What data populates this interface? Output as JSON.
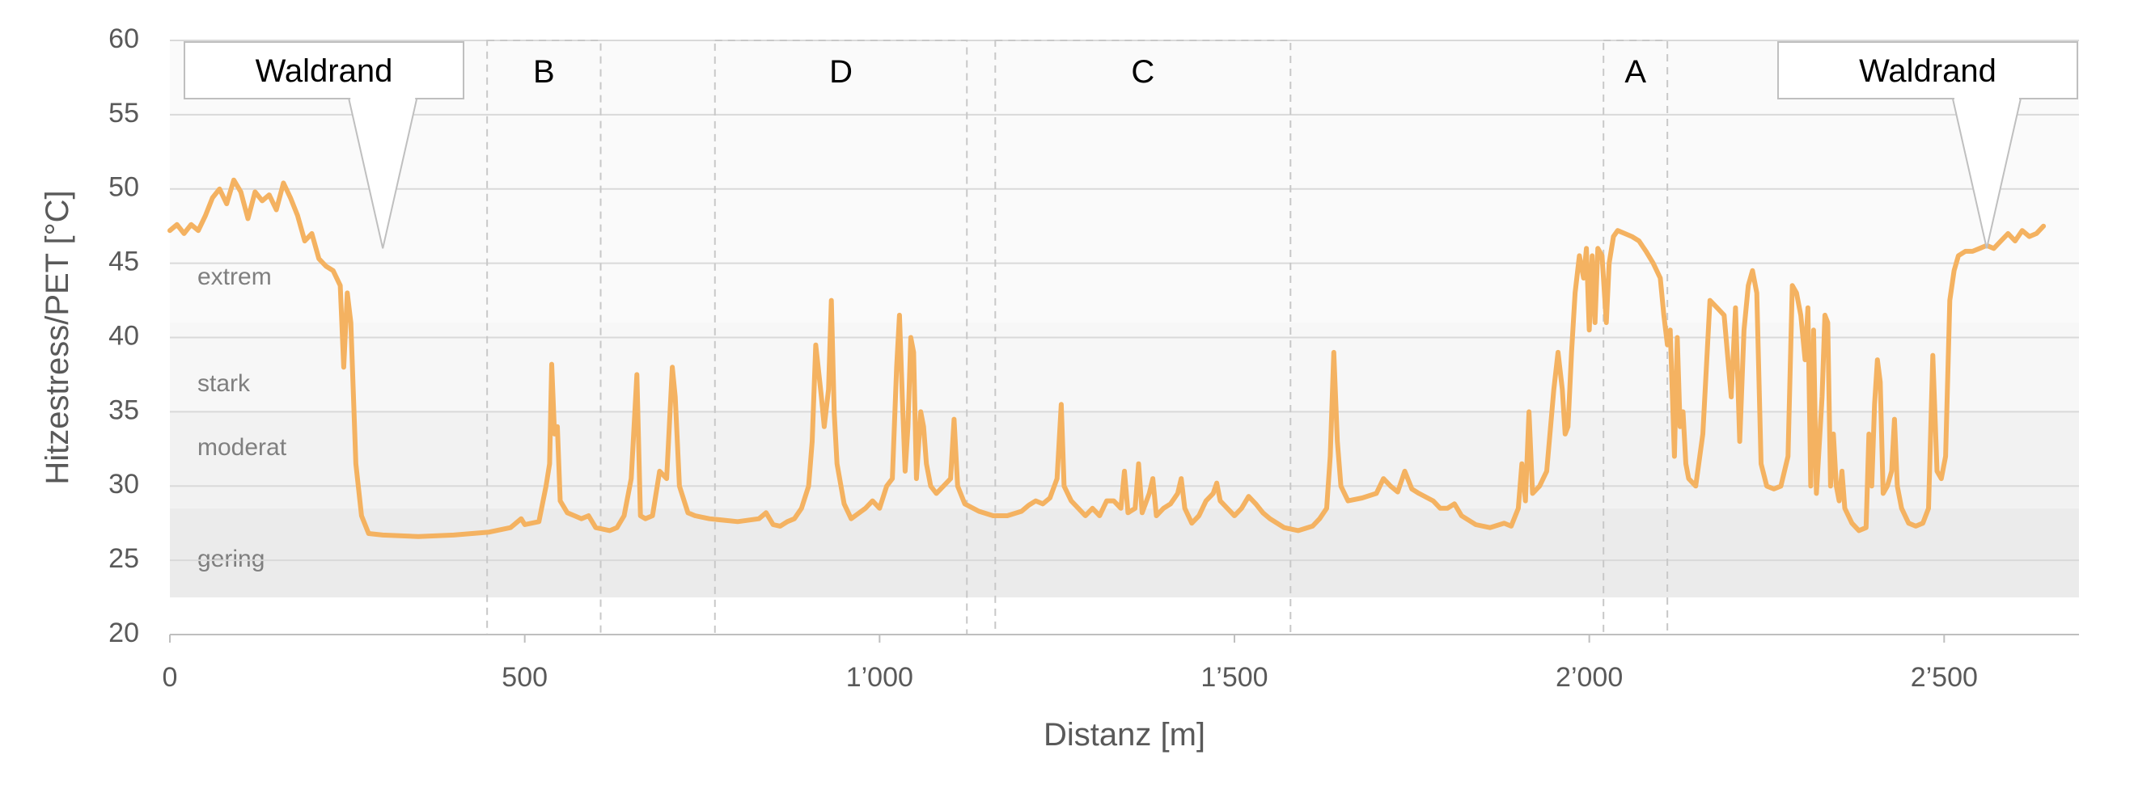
{
  "chart_data": {
    "type": "line",
    "title": "",
    "xlabel": "Distanz [m]",
    "ylabel": "Hitzestress/PET [°C]",
    "xlim": [
      0,
      2690
    ],
    "ylim": [
      20,
      60
    ],
    "x_ticks": [
      0,
      500,
      1000,
      1500,
      2000,
      2500
    ],
    "x_tick_labels": [
      "0",
      "500",
      "1’000",
      "1’500",
      "2’000",
      "2’500"
    ],
    "y_ticks": [
      20,
      25,
      30,
      35,
      40,
      45,
      50,
      55,
      60
    ],
    "y_tick_labels": [
      "20",
      "25",
      "30",
      "35",
      "40",
      "45",
      "50",
      "55",
      "60"
    ],
    "grid": true,
    "legend": "none",
    "colors": {
      "line": "#F4B261",
      "grid": "#D9D9D9",
      "band_gering": "#EBEBEB",
      "band_moderat": "#F2F2F2",
      "band_stark": "#F7F7F7",
      "band_extrem": "#FAFAFA",
      "zone_border": "#C8C8C8",
      "callout_border": "#BFBFBF"
    },
    "bands": [
      {
        "label": "gering",
        "from": 22.5,
        "to": 28.5,
        "color": "#EBEBEB"
      },
      {
        "label": "moderat",
        "from": 28.5,
        "to": 35,
        "color": "#F2F2F2"
      },
      {
        "label": "stark",
        "from": 35,
        "to": 41,
        "color": "#F7F7F7"
      },
      {
        "label": "extrem",
        "from": 41,
        "to": 60,
        "color": "#FAFAFA"
      }
    ],
    "zones": [
      {
        "label": "B",
        "x_from": 447,
        "x_to": 607
      },
      {
        "label": "D",
        "x_from": 768,
        "x_to": 1123
      },
      {
        "label": "C",
        "x_from": 1163,
        "x_to": 1579
      },
      {
        "label": "A",
        "x_from": 2020,
        "x_to": 2110
      }
    ],
    "callouts": [
      {
        "label": "Waldrand",
        "points_to_x": 300,
        "points_to_y": 46
      },
      {
        "label": "Waldrand",
        "points_to_x": 2560,
        "points_to_y": 46
      }
    ],
    "series": [
      {
        "values": [
          [
            0,
            47.2
          ],
          [
            10,
            47.6
          ],
          [
            20,
            47.0
          ],
          [
            30,
            47.6
          ],
          [
            40,
            47.2
          ],
          [
            50,
            48.2
          ],
          [
            60,
            49.4
          ],
          [
            70,
            50.0
          ],
          [
            80,
            49.0
          ],
          [
            90,
            50.6
          ],
          [
            100,
            49.8
          ],
          [
            110,
            48.0
          ],
          [
            120,
            49.8
          ],
          [
            130,
            49.2
          ],
          [
            140,
            49.6
          ],
          [
            150,
            48.6
          ],
          [
            160,
            50.4
          ],
          [
            170,
            49.4
          ],
          [
            180,
            48.2
          ],
          [
            190,
            46.5
          ],
          [
            200,
            47.0
          ],
          [
            210,
            45.3
          ],
          [
            220,
            44.8
          ],
          [
            230,
            44.5
          ],
          [
            240,
            43.5
          ],
          [
            245,
            38.0
          ],
          [
            250,
            43.0
          ],
          [
            255,
            41.0
          ],
          [
            262,
            31.5
          ],
          [
            270,
            28.0
          ],
          [
            280,
            26.8
          ],
          [
            300,
            26.7
          ],
          [
            350,
            26.6
          ],
          [
            400,
            26.7
          ],
          [
            450,
            26.9
          ],
          [
            480,
            27.2
          ],
          [
            495,
            27.8
          ],
          [
            500,
            27.4
          ],
          [
            520,
            27.6
          ],
          [
            530,
            30.0
          ],
          [
            535,
            31.5
          ],
          [
            538,
            38.2
          ],
          [
            542,
            33.5
          ],
          [
            546,
            34.0
          ],
          [
            550,
            29.0
          ],
          [
            560,
            28.2
          ],
          [
            570,
            28.0
          ],
          [
            580,
            27.8
          ],
          [
            590,
            28.0
          ],
          [
            600,
            27.2
          ],
          [
            620,
            27.0
          ],
          [
            630,
            27.2
          ],
          [
            640,
            28.0
          ],
          [
            650,
            30.5
          ],
          [
            658,
            37.5
          ],
          [
            663,
            28.0
          ],
          [
            670,
            27.8
          ],
          [
            680,
            28.0
          ],
          [
            690,
            31.0
          ],
          [
            700,
            30.5
          ],
          [
            708,
            38.0
          ],
          [
            712,
            36.0
          ],
          [
            718,
            30.0
          ],
          [
            730,
            28.2
          ],
          [
            740,
            28.0
          ],
          [
            760,
            27.8
          ],
          [
            800,
            27.6
          ],
          [
            830,
            27.8
          ],
          [
            840,
            28.2
          ],
          [
            850,
            27.4
          ],
          [
            860,
            27.3
          ],
          [
            870,
            27.6
          ],
          [
            880,
            27.8
          ],
          [
            890,
            28.5
          ],
          [
            900,
            30.0
          ],
          [
            905,
            33.0
          ],
          [
            910,
            39.5
          ],
          [
            918,
            36.0
          ],
          [
            922,
            34.0
          ],
          [
            928,
            36.5
          ],
          [
            932,
            42.5
          ],
          [
            936,
            35.0
          ],
          [
            940,
            31.5
          ],
          [
            950,
            28.8
          ],
          [
            960,
            27.8
          ],
          [
            980,
            28.5
          ],
          [
            990,
            29.0
          ],
          [
            1000,
            28.5
          ],
          [
            1010,
            30.0
          ],
          [
            1018,
            30.5
          ],
          [
            1024,
            38.0
          ],
          [
            1028,
            41.5
          ],
          [
            1032,
            36.0
          ],
          [
            1036,
            31.0
          ],
          [
            1040,
            34.0
          ],
          [
            1044,
            40.0
          ],
          [
            1048,
            39.0
          ],
          [
            1052,
            30.5
          ],
          [
            1058,
            35.0
          ],
          [
            1062,
            34.0
          ],
          [
            1066,
            31.5
          ],
          [
            1072,
            30.0
          ],
          [
            1080,
            29.5
          ],
          [
            1090,
            30.0
          ],
          [
            1100,
            30.5
          ],
          [
            1105,
            34.5
          ],
          [
            1110,
            30.0
          ],
          [
            1120,
            28.8
          ],
          [
            1140,
            28.3
          ],
          [
            1160,
            28.0
          ],
          [
            1180,
            28.0
          ],
          [
            1200,
            28.3
          ],
          [
            1210,
            28.7
          ],
          [
            1220,
            29.0
          ],
          [
            1230,
            28.8
          ],
          [
            1240,
            29.2
          ],
          [
            1250,
            30.5
          ],
          [
            1256,
            35.5
          ],
          [
            1260,
            30.0
          ],
          [
            1270,
            29.0
          ],
          [
            1280,
            28.5
          ],
          [
            1290,
            28.0
          ],
          [
            1300,
            28.5
          ],
          [
            1310,
            28.0
          ],
          [
            1320,
            29.0
          ],
          [
            1330,
            29.0
          ],
          [
            1340,
            28.5
          ],
          [
            1345,
            31.0
          ],
          [
            1350,
            28.2
          ],
          [
            1360,
            28.5
          ],
          [
            1365,
            31.5
          ],
          [
            1370,
            28.2
          ],
          [
            1380,
            29.5
          ],
          [
            1385,
            30.5
          ],
          [
            1390,
            28.0
          ],
          [
            1400,
            28.5
          ],
          [
            1410,
            28.8
          ],
          [
            1420,
            29.5
          ],
          [
            1425,
            30.5
          ],
          [
            1430,
            28.5
          ],
          [
            1440,
            27.5
          ],
          [
            1450,
            28.0
          ],
          [
            1460,
            29.0
          ],
          [
            1470,
            29.5
          ],
          [
            1475,
            30.2
          ],
          [
            1480,
            29.0
          ],
          [
            1490,
            28.5
          ],
          [
            1500,
            28.0
          ],
          [
            1510,
            28.5
          ],
          [
            1520,
            29.3
          ],
          [
            1530,
            28.8
          ],
          [
            1540,
            28.2
          ],
          [
            1550,
            27.8
          ],
          [
            1570,
            27.2
          ],
          [
            1590,
            27.0
          ],
          [
            1610,
            27.3
          ],
          [
            1620,
            27.8
          ],
          [
            1630,
            28.5
          ],
          [
            1635,
            32.0
          ],
          [
            1640,
            39.0
          ],
          [
            1645,
            33.0
          ],
          [
            1650,
            30.0
          ],
          [
            1660,
            29.0
          ],
          [
            1680,
            29.2
          ],
          [
            1700,
            29.5
          ],
          [
            1710,
            30.5
          ],
          [
            1720,
            30.0
          ],
          [
            1730,
            29.6
          ],
          [
            1740,
            31.0
          ],
          [
            1750,
            29.8
          ],
          [
            1760,
            29.5
          ],
          [
            1780,
            29.0
          ],
          [
            1790,
            28.5
          ],
          [
            1800,
            28.5
          ],
          [
            1810,
            28.8
          ],
          [
            1820,
            28.0
          ],
          [
            1840,
            27.4
          ],
          [
            1860,
            27.2
          ],
          [
            1880,
            27.5
          ],
          [
            1890,
            27.3
          ],
          [
            1900,
            28.5
          ],
          [
            1905,
            31.5
          ],
          [
            1910,
            29.0
          ],
          [
            1915,
            35.0
          ],
          [
            1920,
            29.5
          ],
          [
            1930,
            30.0
          ],
          [
            1940,
            31.0
          ],
          [
            1950,
            36.5
          ],
          [
            1956,
            39.0
          ],
          [
            1962,
            36.5
          ],
          [
            1966,
            33.5
          ],
          [
            1970,
            34.0
          ],
          [
            1975,
            39.0
          ],
          [
            1980,
            43.0
          ],
          [
            1986,
            45.5
          ],
          [
            1992,
            44.0
          ],
          [
            1996,
            46.0
          ],
          [
            2000,
            40.5
          ],
          [
            2004,
            45.5
          ],
          [
            2008,
            41.0
          ],
          [
            2012,
            46.0
          ],
          [
            2018,
            45.5
          ],
          [
            2024,
            41.0
          ],
          [
            2028,
            45.0
          ],
          [
            2034,
            46.8
          ],
          [
            2040,
            47.2
          ],
          [
            2050,
            47.0
          ],
          [
            2060,
            46.8
          ],
          [
            2070,
            46.5
          ],
          [
            2080,
            45.8
          ],
          [
            2090,
            45.0
          ],
          [
            2100,
            44.0
          ],
          [
            2105,
            41.5
          ],
          [
            2110,
            39.5
          ],
          [
            2114,
            40.5
          ],
          [
            2120,
            32.0
          ],
          [
            2124,
            40.0
          ],
          [
            2128,
            34.0
          ],
          [
            2132,
            35.0
          ],
          [
            2136,
            31.5
          ],
          [
            2140,
            30.5
          ],
          [
            2150,
            30.0
          ],
          [
            2160,
            33.5
          ],
          [
            2170,
            42.5
          ],
          [
            2180,
            42.0
          ],
          [
            2190,
            41.5
          ],
          [
            2200,
            36.0
          ],
          [
            2206,
            42.0
          ],
          [
            2212,
            33.0
          ],
          [
            2218,
            40.5
          ],
          [
            2224,
            43.5
          ],
          [
            2230,
            44.5
          ],
          [
            2236,
            43.0
          ],
          [
            2242,
            31.5
          ],
          [
            2250,
            30.0
          ],
          [
            2260,
            29.8
          ],
          [
            2270,
            30.0
          ],
          [
            2280,
            32.0
          ],
          [
            2286,
            43.5
          ],
          [
            2292,
            43.0
          ],
          [
            2298,
            41.5
          ],
          [
            2304,
            38.5
          ],
          [
            2308,
            42.0
          ],
          [
            2312,
            30.0
          ],
          [
            2316,
            40.5
          ],
          [
            2320,
            29.5
          ],
          [
            2328,
            36.0
          ],
          [
            2332,
            41.5
          ],
          [
            2336,
            41.0
          ],
          [
            2340,
            30.0
          ],
          [
            2344,
            33.5
          ],
          [
            2348,
            30.0
          ],
          [
            2352,
            29.0
          ],
          [
            2356,
            31.0
          ],
          [
            2360,
            28.5
          ],
          [
            2370,
            27.5
          ],
          [
            2380,
            27.0
          ],
          [
            2390,
            27.2
          ],
          [
            2394,
            33.5
          ],
          [
            2398,
            30.0
          ],
          [
            2402,
            35.5
          ],
          [
            2406,
            38.5
          ],
          [
            2410,
            37.0
          ],
          [
            2414,
            29.5
          ],
          [
            2420,
            30.0
          ],
          [
            2426,
            31.0
          ],
          [
            2430,
            34.5
          ],
          [
            2434,
            30.0
          ],
          [
            2440,
            28.5
          ],
          [
            2450,
            27.5
          ],
          [
            2460,
            27.3
          ],
          [
            2470,
            27.5
          ],
          [
            2478,
            28.5
          ],
          [
            2484,
            38.8
          ],
          [
            2490,
            31.0
          ],
          [
            2496,
            30.5
          ],
          [
            2502,
            32.0
          ],
          [
            2508,
            42.5
          ],
          [
            2514,
            44.5
          ],
          [
            2520,
            45.5
          ],
          [
            2530,
            45.8
          ],
          [
            2540,
            45.8
          ],
          [
            2550,
            46.0
          ],
          [
            2560,
            46.2
          ],
          [
            2570,
            46.0
          ],
          [
            2580,
            46.5
          ],
          [
            2590,
            47.0
          ],
          [
            2600,
            46.5
          ],
          [
            2610,
            47.2
          ],
          [
            2620,
            46.8
          ],
          [
            2630,
            47.0
          ],
          [
            2640,
            47.5
          ]
        ]
      }
    ]
  }
}
